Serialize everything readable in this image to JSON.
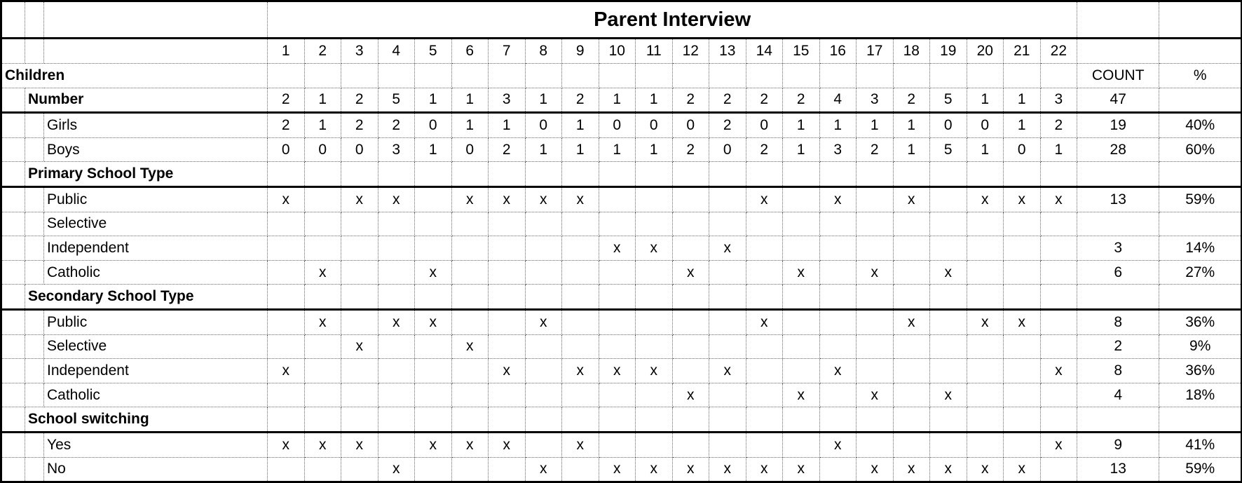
{
  "title": "Parent Interview",
  "columns": [
    "1",
    "2",
    "3",
    "4",
    "5",
    "6",
    "7",
    "8",
    "9",
    "10",
    "11",
    "12",
    "13",
    "14",
    "15",
    "16",
    "17",
    "18",
    "19",
    "20",
    "21",
    "22"
  ],
  "count_header": "COUNT",
  "pct_header": "%",
  "rows": [
    {
      "label": "Children",
      "level": 0,
      "bold": true,
      "values": [
        "",
        "",
        "",
        "",
        "",
        "",
        "",
        "",
        "",
        "",
        "",
        "",
        "",
        "",
        "",
        "",
        "",
        "",
        "",
        "",
        "",
        ""
      ],
      "count": "COUNT",
      "pct": "%"
    },
    {
      "label": "Number",
      "level": 1,
      "bold": true,
      "values": [
        "2",
        "1",
        "2",
        "5",
        "1",
        "1",
        "3",
        "1",
        "2",
        "1",
        "1",
        "2",
        "2",
        "2",
        "2",
        "4",
        "3",
        "2",
        "5",
        "1",
        "1",
        "3"
      ],
      "count": "47",
      "pct": ""
    },
    {
      "label": "Girls",
      "level": 2,
      "thick": true,
      "values": [
        "2",
        "1",
        "2",
        "2",
        "0",
        "1",
        "1",
        "0",
        "1",
        "0",
        "0",
        "0",
        "2",
        "0",
        "1",
        "1",
        "1",
        "1",
        "0",
        "0",
        "1",
        "2"
      ],
      "count": "19",
      "pct": "40%"
    },
    {
      "label": "Boys",
      "level": 2,
      "values": [
        "0",
        "0",
        "0",
        "3",
        "1",
        "0",
        "2",
        "1",
        "1",
        "1",
        "1",
        "2",
        "0",
        "2",
        "1",
        "3",
        "2",
        "1",
        "5",
        "1",
        "0",
        "1"
      ],
      "count": "28",
      "pct": "60%"
    },
    {
      "label": "Primary School Type",
      "level": 1,
      "bold": true,
      "values": [
        "",
        "",
        "",
        "",
        "",
        "",
        "",
        "",
        "",
        "",
        "",
        "",
        "",
        "",
        "",
        "",
        "",
        "",
        "",
        "",
        "",
        ""
      ],
      "count": "",
      "pct": ""
    },
    {
      "label": "Public",
      "level": 2,
      "thick": true,
      "values": [
        "x",
        "",
        "x",
        "x",
        "",
        "x",
        "x",
        "x",
        "x",
        "",
        "",
        "",
        "",
        "x",
        "",
        "x",
        "",
        "x",
        "",
        "x",
        "x",
        "x"
      ],
      "count": "13",
      "pct": "59%"
    },
    {
      "label": "Selective",
      "level": 2,
      "values": [
        "",
        "",
        "",
        "",
        "",
        "",
        "",
        "",
        "",
        "",
        "",
        "",
        "",
        "",
        "",
        "",
        "",
        "",
        "",
        "",
        "",
        ""
      ],
      "count": "",
      "pct": ""
    },
    {
      "label": "Independent",
      "level": 2,
      "values": [
        "",
        "",
        "",
        "",
        "",
        "",
        "",
        "",
        "",
        "x",
        "x",
        "",
        "x",
        "",
        "",
        "",
        "",
        "",
        "",
        "",
        "",
        ""
      ],
      "count": "3",
      "pct": "14%"
    },
    {
      "label": "Catholic",
      "level": 2,
      "values": [
        "",
        "x",
        "",
        "",
        "x",
        "",
        "",
        "",
        "",
        "",
        "",
        "x",
        "",
        "",
        "x",
        "",
        "x",
        "",
        "x",
        "",
        "",
        ""
      ],
      "count": "6",
      "pct": "27%"
    },
    {
      "label": "Secondary School Type",
      "level": 1,
      "bold": true,
      "values": [
        "",
        "",
        "",
        "",
        "",
        "",
        "",
        "",
        "",
        "",
        "",
        "",
        "",
        "",
        "",
        "",
        "",
        "",
        "",
        "",
        "",
        ""
      ],
      "count": "",
      "pct": ""
    },
    {
      "label": "Public",
      "level": 2,
      "thick": true,
      "values": [
        "",
        "x",
        "",
        "x",
        "x",
        "",
        "",
        "x",
        "",
        "",
        "",
        "",
        "",
        "x",
        "",
        "",
        "",
        "x",
        "",
        "x",
        "x",
        ""
      ],
      "count": "8",
      "pct": "36%"
    },
    {
      "label": "Selective",
      "level": 2,
      "values": [
        "",
        "",
        "x",
        "",
        "",
        "x",
        "",
        "",
        "",
        "",
        "",
        "",
        "",
        "",
        "",
        "",
        "",
        "",
        "",
        "",
        "",
        ""
      ],
      "count": "2",
      "pct": "9%"
    },
    {
      "label": "Independent",
      "level": 2,
      "values": [
        "x",
        "",
        "",
        "",
        "",
        "",
        "x",
        "",
        "x",
        "x",
        "x",
        "",
        "x",
        "",
        "",
        "x",
        "",
        "",
        "",
        "",
        "",
        "x"
      ],
      "count": "8",
      "pct": "36%"
    },
    {
      "label": "Catholic",
      "level": 2,
      "values": [
        "",
        "",
        "",
        "",
        "",
        "",
        "",
        "",
        "",
        "",
        "",
        "x",
        "",
        "",
        "x",
        "",
        "x",
        "",
        "x",
        "",
        "",
        ""
      ],
      "count": "4",
      "pct": "18%"
    },
    {
      "label": "School switching",
      "level": 1,
      "bold": true,
      "values": [
        "",
        "",
        "",
        "",
        "",
        "",
        "",
        "",
        "",
        "",
        "",
        "",
        "",
        "",
        "",
        "",
        "",
        "",
        "",
        "",
        "",
        ""
      ],
      "count": "",
      "pct": ""
    },
    {
      "label": "Yes",
      "level": 2,
      "thick": true,
      "values": [
        "x",
        "x",
        "x",
        "",
        "x",
        "x",
        "x",
        "",
        "x",
        "",
        "",
        "",
        "",
        "",
        "",
        "x",
        "",
        "",
        "",
        "",
        "",
        "x"
      ],
      "count": "9",
      "pct": "41%"
    },
    {
      "label": "No",
      "level": 2,
      "values": [
        "",
        "",
        "",
        "x",
        "",
        "",
        "",
        "x",
        "",
        "x",
        "x",
        "x",
        "x",
        "x",
        "x",
        "",
        "x",
        "x",
        "x",
        "x",
        "x",
        ""
      ],
      "count": "13",
      "pct": "59%"
    }
  ]
}
